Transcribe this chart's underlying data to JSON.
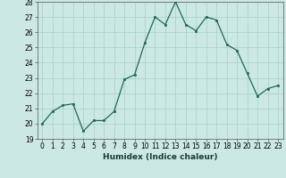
{
  "x": [
    0,
    1,
    2,
    3,
    4,
    5,
    6,
    7,
    8,
    9,
    10,
    11,
    12,
    13,
    14,
    15,
    16,
    17,
    18,
    19,
    20,
    21,
    22,
    23
  ],
  "y": [
    20.0,
    20.8,
    21.2,
    21.3,
    19.5,
    20.2,
    20.2,
    20.8,
    22.9,
    23.2,
    25.3,
    27.0,
    26.5,
    28.0,
    26.5,
    26.1,
    27.0,
    26.8,
    25.2,
    24.8,
    23.3,
    21.8,
    22.3,
    22.5
  ],
  "xlabel": "Humidex (Indice chaleur)",
  "line_color": "#1a6b5a",
  "bg_color": "#cce8e4",
  "grid_color": "#aad4ce",
  "ylim": [
    19,
    28
  ],
  "xlim": [
    -0.5,
    23.5
  ],
  "yticks": [
    19,
    20,
    21,
    22,
    23,
    24,
    25,
    26,
    27,
    28
  ],
  "xticks": [
    0,
    1,
    2,
    3,
    4,
    5,
    6,
    7,
    8,
    9,
    10,
    11,
    12,
    13,
    14,
    15,
    16,
    17,
    18,
    19,
    20,
    21,
    22,
    23
  ],
  "tick_fontsize": 5.5,
  "xlabel_fontsize": 6.5,
  "linewidth": 0.9,
  "markersize": 2.0
}
